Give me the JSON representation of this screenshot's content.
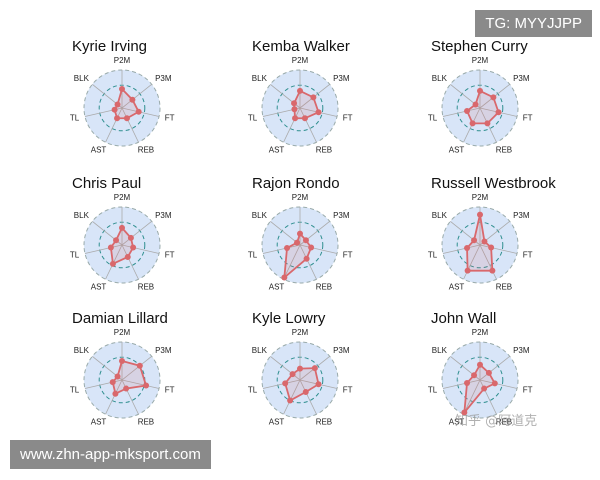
{
  "chart_data": [
    {
      "type": "radar",
      "title": "Kyrie Irving",
      "categories": [
        "P2M",
        "P3M",
        "FT",
        "REB",
        "AST",
        "TL",
        "BLK"
      ],
      "values": [
        0.5,
        0.35,
        0.45,
        0.3,
        0.3,
        0.2,
        0.15
      ],
      "color": "#d9686c",
      "rlim": [
        0,
        1
      ],
      "rticks": [
        0.6,
        1
      ]
    },
    {
      "type": "radar",
      "title": "Kemba Walker",
      "categories": [
        "P2M",
        "P3M",
        "FT",
        "REB",
        "AST",
        "TL",
        "BLK"
      ],
      "values": [
        0.45,
        0.45,
        0.5,
        0.3,
        0.3,
        0.15,
        0.2
      ],
      "color": "#d9686c",
      "rlim": [
        0,
        1
      ],
      "rticks": [
        0.6,
        1
      ]
    },
    {
      "type": "radar",
      "title": "Stephen Curry",
      "categories": [
        "P2M",
        "P3M",
        "FT",
        "REB",
        "AST",
        "TL",
        "BLK"
      ],
      "values": [
        0.45,
        0.45,
        0.5,
        0.45,
        0.45,
        0.35,
        0.15
      ],
      "color": "#d9686c",
      "rlim": [
        0,
        1
      ],
      "rticks": [
        0.6,
        1
      ]
    },
    {
      "type": "radar",
      "title": "Chris Paul",
      "categories": [
        "P2M",
        "P3M",
        "FT",
        "REB",
        "AST",
        "TL",
        "BLK"
      ],
      "values": [
        0.45,
        0.3,
        0.3,
        0.35,
        0.55,
        0.3,
        0.2
      ],
      "color": "#d9686c",
      "rlim": [
        0,
        1
      ],
      "rticks": [
        0.6,
        1
      ]
    },
    {
      "type": "radar",
      "title": "Rajon Rondo",
      "categories": [
        "P2M",
        "P3M",
        "FT",
        "REB",
        "AST",
        "TL",
        "BLK"
      ],
      "values": [
        0.3,
        0.2,
        0.3,
        0.4,
        0.95,
        0.35,
        0.1
      ],
      "color": "#d9686c",
      "rlim": [
        0,
        1
      ],
      "rticks": [
        0.6,
        1
      ]
    },
    {
      "type": "radar",
      "title": "Russell Westbrook",
      "categories": [
        "P2M",
        "P3M",
        "FT",
        "REB",
        "AST",
        "TL",
        "BLK"
      ],
      "values": [
        0.8,
        0.15,
        0.3,
        0.75,
        0.75,
        0.35,
        0.2
      ],
      "color": "#d9686c",
      "rlim": [
        0,
        1
      ],
      "rticks": [
        0.6,
        1
      ]
    },
    {
      "type": "radar",
      "title": "Damian Lillard",
      "categories": [
        "P2M",
        "P3M",
        "FT",
        "REB",
        "AST",
        "TL",
        "BLK"
      ],
      "values": [
        0.5,
        0.6,
        0.65,
        0.25,
        0.4,
        0.25,
        0.15
      ],
      "color": "#d9686c",
      "rlim": [
        0,
        1
      ],
      "rticks": [
        0.6,
        1
      ]
    },
    {
      "type": "radar",
      "title": "Kyle Lowry",
      "categories": [
        "P2M",
        "P3M",
        "FT",
        "REB",
        "AST",
        "TL",
        "BLK"
      ],
      "values": [
        0.3,
        0.5,
        0.5,
        0.35,
        0.6,
        0.4,
        0.25
      ],
      "color": "#d9686c",
      "rlim": [
        0,
        1
      ],
      "rticks": [
        0.6,
        1
      ]
    },
    {
      "type": "radar",
      "title": "John Wall",
      "categories": [
        "P2M",
        "P3M",
        "FT",
        "REB",
        "AST",
        "TL",
        "BLK"
      ],
      "values": [
        0.4,
        0.3,
        0.4,
        0.25,
        0.95,
        0.35,
        0.2
      ],
      "color": "#d9686c",
      "rlim": [
        0,
        1
      ],
      "rticks": [
        0.6,
        1
      ]
    }
  ],
  "watermarks": [
    "TG: MYYJJPP",
    "www.zhn-app-mksport.com",
    "知乎 @阿道克"
  ]
}
